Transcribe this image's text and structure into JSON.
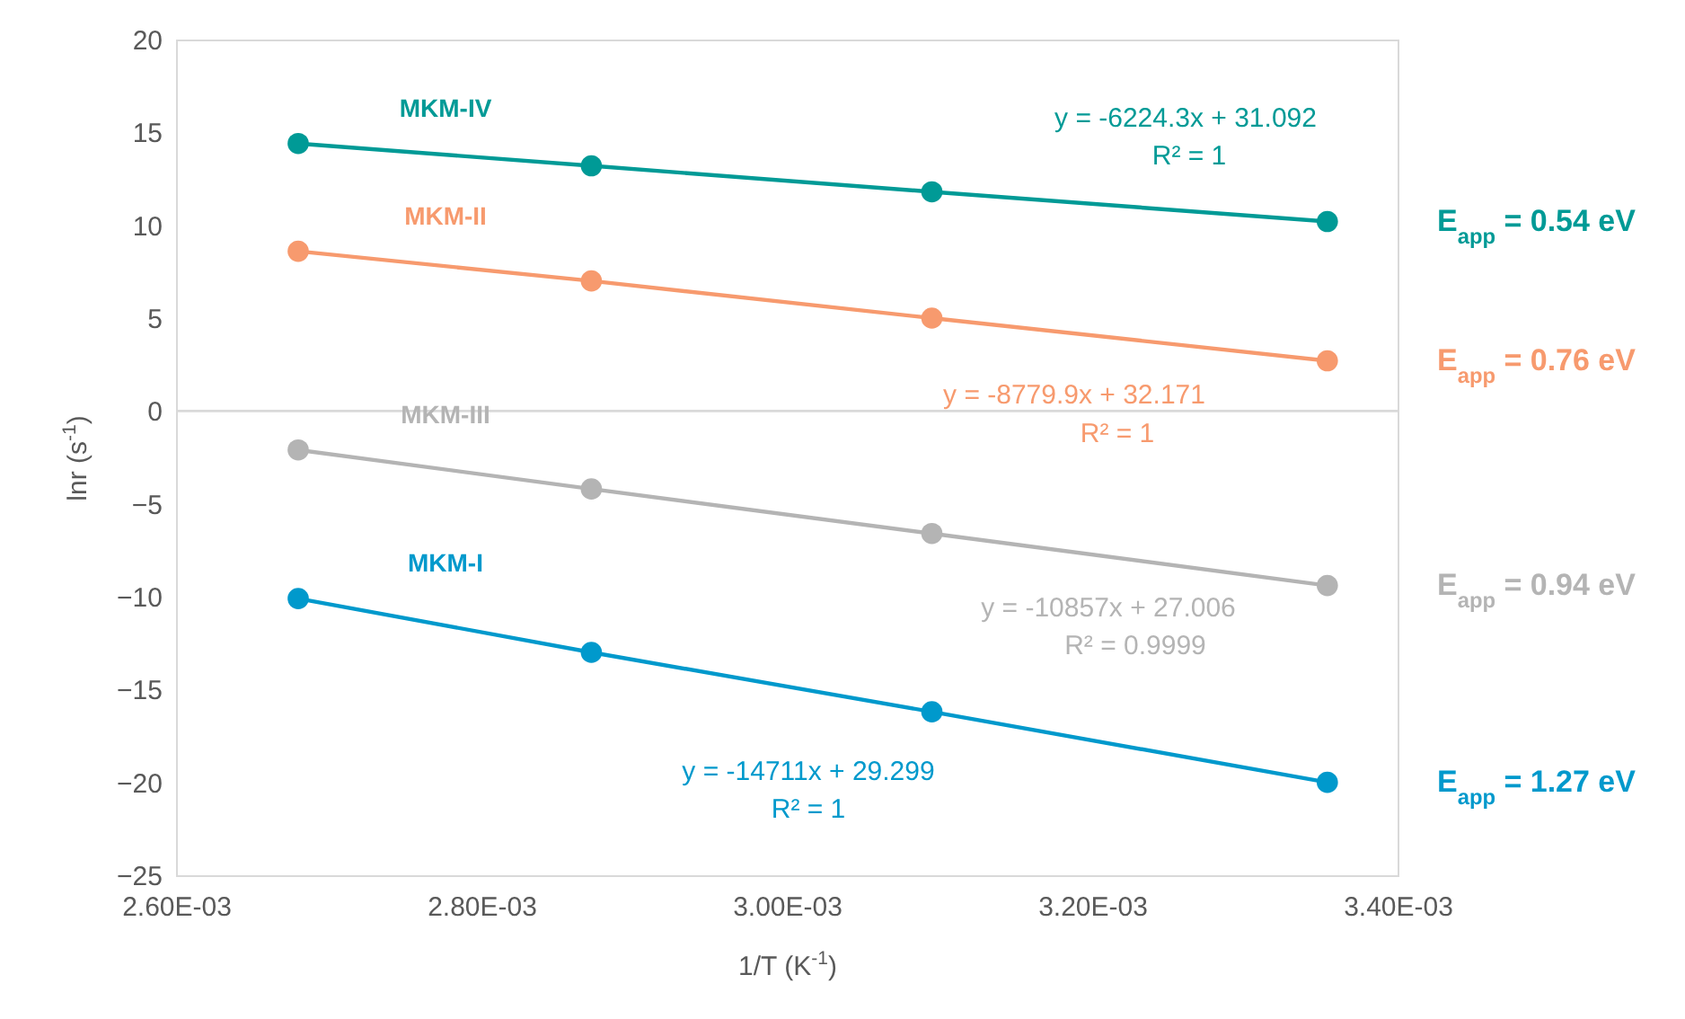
{
  "chart_data": {
    "type": "line",
    "xlabel": "1/T (K$^{-1}$)",
    "ylabel": "lnr (s$^{-1}$)",
    "x": [
      0.00268,
      0.002872,
      0.003095,
      0.003354
    ],
    "series": [
      {
        "name": "MKM-IV",
        "color": "#009a96",
        "values": [
          14.4,
          13.2,
          11.8,
          10.2
        ]
      },
      {
        "name": "MKM-II",
        "color": "#f79a6e",
        "values": [
          8.6,
          7.0,
          5.0,
          2.7
        ]
      },
      {
        "name": "MKM-III",
        "color": "#b4b4b4",
        "values": [
          -2.1,
          -4.2,
          -6.6,
          -9.4
        ]
      },
      {
        "name": "MKM-I",
        "color": "#0099cc",
        "values": [
          -10.1,
          -13.0,
          -16.2,
          -20.0
        ]
      }
    ],
    "xlim": [
      0.0026,
      0.0034
    ],
    "xticks": [
      {
        "value": 0.0026,
        "label": "2.60E-03"
      },
      {
        "value": 0.0028,
        "label": "2.80E-03"
      },
      {
        "value": 0.003,
        "label": "3.00E-03"
      },
      {
        "value": 0.0032,
        "label": "3.20E-03"
      },
      {
        "value": 0.0034,
        "label": "3.40E-03"
      }
    ],
    "ylim": [
      -25,
      20
    ],
    "yticks": [
      -25,
      -20,
      -15,
      -10,
      -5,
      0,
      5,
      10,
      15,
      20
    ],
    "ref_lines": [
      {
        "axis": "y",
        "value": 0,
        "color": "#d9d9d9"
      }
    ],
    "annotations": [
      "y = -6224.3x + 31.092",
      "R² = 1",
      "y = -8779.9x + 32.171",
      "R² = 1",
      "y = -10857x + 27.006",
      "R² = 0.9999",
      "y = -14711x + 29.299",
      "R² = 1",
      "E$_{app}$ = 0.54 eV",
      "E$_{app}$ = 0.76 eV",
      "E$_{app}$ = 0.94 eV",
      "E$_{app}$ = 1.27 eV"
    ],
    "grid": false,
    "legend": false,
    "marker": "circle",
    "line_style": "solid"
  }
}
